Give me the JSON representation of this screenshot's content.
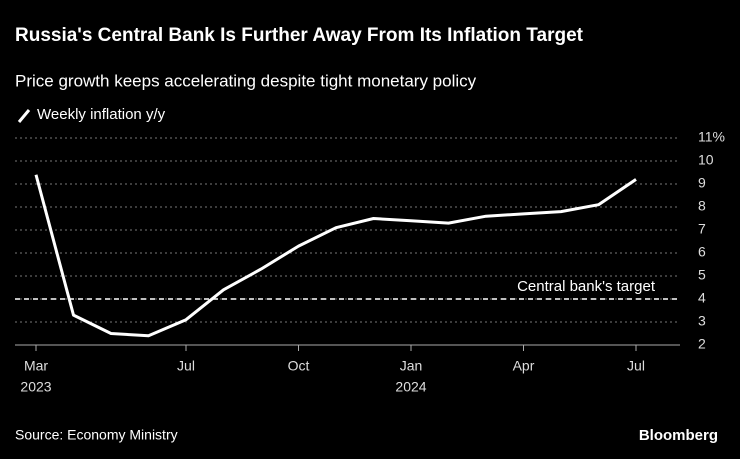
{
  "chart_data": {
    "type": "line",
    "title": "Russia's Central Bank Is Further Away From Its Inflation Target",
    "subtitle": "Price growth keeps accelerating despite tight monetary policy",
    "source": "Source: Economy Ministry",
    "brand": "Bloomberg",
    "x": [
      "2023-03",
      "2023-04",
      "2023-05",
      "2023-06",
      "2023-07",
      "2023-08",
      "2023-09",
      "2023-10",
      "2023-11",
      "2023-12",
      "2024-01",
      "2024-02",
      "2024-03",
      "2024-04",
      "2024-05",
      "2024-06",
      "2024-07"
    ],
    "series": [
      {
        "name": "Weekly inflation y/y",
        "color": "#ffffff",
        "values": [
          9.4,
          3.3,
          2.5,
          2.4,
          3.1,
          4.4,
          5.3,
          6.3,
          7.1,
          7.5,
          7.4,
          7.3,
          7.6,
          7.7,
          7.8,
          8.1,
          9.2
        ]
      }
    ],
    "xlim": [
      "2023-02",
      "2024-08"
    ],
    "xticks": [
      {
        "value": "2023-03",
        "label": "Mar",
        "sublabel": "2023"
      },
      {
        "value": "2023-07",
        "label": "Jul"
      },
      {
        "value": "2023-10",
        "label": "Oct"
      },
      {
        "value": "2024-01",
        "label": "Jan",
        "sublabel": "2024"
      },
      {
        "value": "2024-04",
        "label": "Apr"
      },
      {
        "value": "2024-07",
        "label": "Jul"
      }
    ],
    "ylim": [
      2,
      11
    ],
    "yticks": [
      2,
      3,
      4,
      5,
      6,
      7,
      8,
      9,
      10,
      {
        "value": 11,
        "label": "11%"
      }
    ],
    "grid": true,
    "target": {
      "value": 4,
      "label": "Central bank's target"
    }
  }
}
